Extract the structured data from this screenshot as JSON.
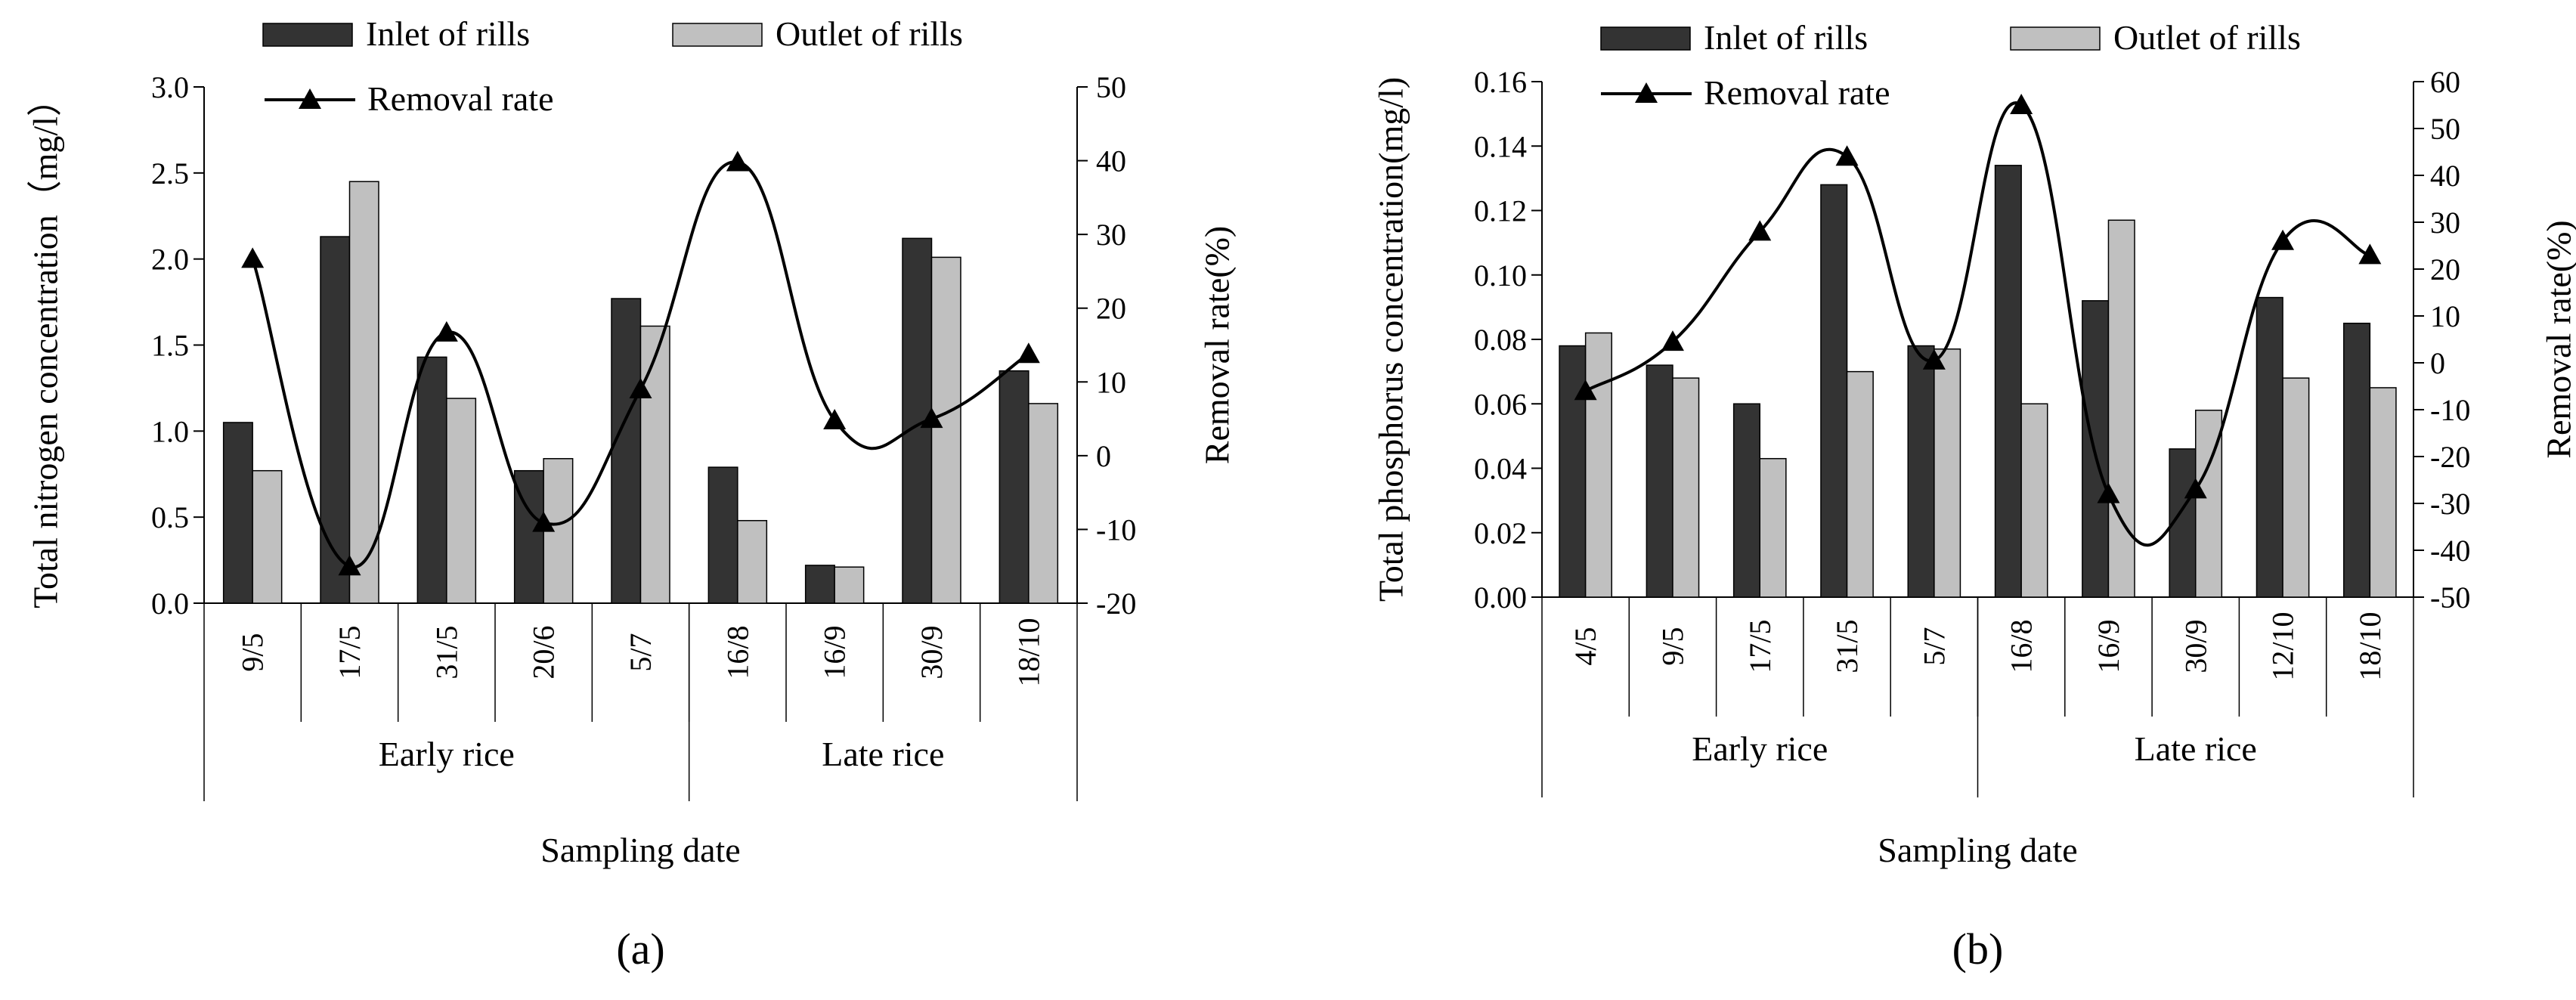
{
  "chart_data": [
    {
      "type": "bar",
      "panel_label": "(a)",
      "ylabel": "Total nitrogen concentration（mg/l）",
      "y2label": "Removal rate(%)",
      "xlabel": "Sampling date",
      "ylim": [
        0,
        3.0
      ],
      "y_ticks": [
        "0.0",
        "0.5",
        "1.0",
        "1.5",
        "2.0",
        "2.5",
        "3.0"
      ],
      "y2lim": [
        -20,
        50
      ],
      "y2_ticks": [
        "-20",
        "-10",
        "0",
        "10",
        "20",
        "30",
        "40",
        "50"
      ],
      "categories": [
        "9/5",
        "17/5",
        "31/5",
        "20/6",
        "5/7",
        "16/8",
        "16/9",
        "30/9",
        "18/10"
      ],
      "groups": [
        {
          "label": "Early rice",
          "count": 5
        },
        {
          "label": "Late rice",
          "count": 4
        }
      ],
      "series": [
        {
          "name": "Inlet of rills",
          "kind": "bar",
          "color": "#333333",
          "values": [
            1.05,
            2.13,
            1.43,
            0.77,
            1.77,
            0.79,
            0.22,
            2.12,
            1.35
          ]
        },
        {
          "name": "Outlet of rills",
          "kind": "bar",
          "color": "#c0c0c0",
          "values": [
            0.77,
            2.45,
            1.19,
            0.84,
            1.61,
            0.48,
            0.21,
            2.01,
            1.16
          ]
        },
        {
          "name": "Removal rate",
          "kind": "line",
          "axis": "right",
          "color": "#000000",
          "values": [
            26.7,
            -15.0,
            16.7,
            -9.1,
            9.0,
            39.8,
            4.8,
            5.0,
            13.8
          ]
        }
      ]
    },
    {
      "type": "bar",
      "panel_label": "(b)",
      "ylabel": "Total phosphorus concentration(mg/l)",
      "y2label": "Removal rate(%)",
      "xlabel": "Sampling date",
      "ylim": [
        0,
        0.16
      ],
      "y_ticks": [
        "0.00",
        "0.02",
        "0.04",
        "0.06",
        "0.08",
        "0.10",
        "0.12",
        "0.14",
        "0.16"
      ],
      "y2lim": [
        -50,
        60
      ],
      "y2_ticks": [
        "-50",
        "-40",
        "-30",
        "-20",
        "-10",
        "0",
        "10",
        "20",
        "30",
        "40",
        "50",
        "60"
      ],
      "categories": [
        "4/5",
        "9/5",
        "17/5",
        "31/5",
        "5/7",
        "16/8",
        "16/9",
        "30/9",
        "12/10",
        "18/10"
      ],
      "groups": [
        {
          "label": "Early rice",
          "count": 5
        },
        {
          "label": "Late rice",
          "count": 5
        }
      ],
      "series": [
        {
          "name": "Inlet of rills",
          "kind": "bar",
          "color": "#333333",
          "values": [
            0.078,
            0.072,
            0.06,
            0.128,
            0.078,
            0.134,
            0.092,
            0.046,
            0.093,
            0.085
          ]
        },
        {
          "name": "Outlet of rills",
          "kind": "bar",
          "color": "#c0c0c0",
          "values": [
            0.082,
            0.068,
            0.043,
            0.07,
            0.077,
            0.06,
            0.117,
            0.058,
            0.068,
            0.065
          ]
        },
        {
          "name": "Removal rate",
          "kind": "line",
          "axis": "right",
          "color": "#000000",
          "values": [
            -6,
            4.5,
            28,
            44,
            0.5,
            55,
            -28,
            -27,
            26,
            23
          ]
        }
      ]
    }
  ]
}
